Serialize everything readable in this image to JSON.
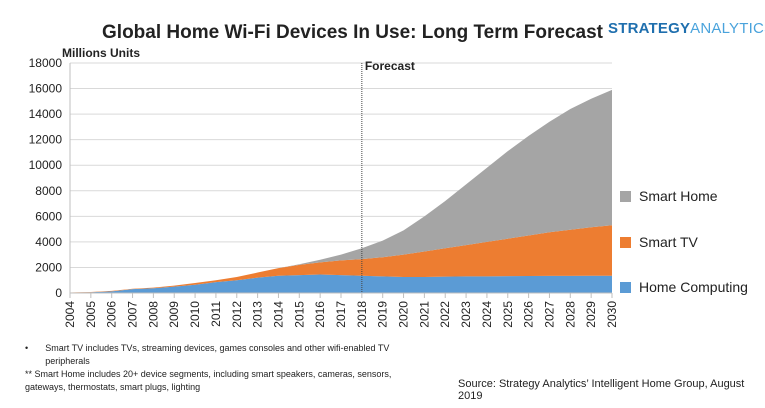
{
  "title": "Global Home Wi-Fi Devices In Use: Long Term Forecast",
  "logo": {
    "part1": "STRATEGY",
    "part2": "ANALYTICS"
  },
  "chart_data": {
    "type": "area",
    "stacked": true,
    "title": "Global Home Wi-Fi Devices In Use: Long Term Forecast",
    "ylabel": "Millions Units",
    "xlabel": "",
    "ylim": [
      0,
      18000
    ],
    "yticks": [
      0,
      2000,
      4000,
      6000,
      8000,
      10000,
      12000,
      14000,
      16000,
      18000
    ],
    "grid": true,
    "legend_position": "right",
    "annotation": {
      "label": "Forecast",
      "x": 2018
    },
    "categories": [
      2004,
      2005,
      2006,
      2007,
      2008,
      2009,
      2010,
      2011,
      2012,
      2013,
      2014,
      2015,
      2016,
      2017,
      2018,
      2019,
      2020,
      2021,
      2022,
      2023,
      2024,
      2025,
      2026,
      2027,
      2028,
      2029,
      2030
    ],
    "series": [
      {
        "name": "Home Computing",
        "color": "#5b9bd5",
        "values": [
          30,
          60,
          130,
          300,
          370,
          500,
          650,
          850,
          1000,
          1200,
          1350,
          1400,
          1450,
          1400,
          1350,
          1300,
          1250,
          1250,
          1280,
          1300,
          1300,
          1320,
          1330,
          1340,
          1340,
          1350,
          1350
        ]
      },
      {
        "name": "Smart TV",
        "color": "#ed7d31",
        "values": [
          10,
          20,
          40,
          30,
          50,
          80,
          130,
          150,
          250,
          400,
          600,
          800,
          950,
          1150,
          1300,
          1500,
          1750,
          2000,
          2220,
          2450,
          2700,
          2930,
          3170,
          3410,
          3610,
          3800,
          3950
        ]
      },
      {
        "name": "Smart Home",
        "color": "#a5a5a5",
        "values": [
          0,
          0,
          0,
          0,
          0,
          0,
          0,
          0,
          0,
          0,
          0,
          50,
          200,
          450,
          850,
          1300,
          1900,
          2750,
          3700,
          4750,
          5800,
          6850,
          7800,
          8650,
          9450,
          10050,
          10600
        ]
      }
    ]
  },
  "notes": [
    "Smart TV includes TVs, streaming devices, games consoles and other wifi-enabled TV peripherals",
    "** Smart Home includes 20+ device segments, including smart speakers, cameras, sensors, gateways, thermostats, smart plugs, lighting"
  ],
  "bullet": "•",
  "source": "Source: Strategy Analytics’ Intelligent Home Group, August 2019"
}
